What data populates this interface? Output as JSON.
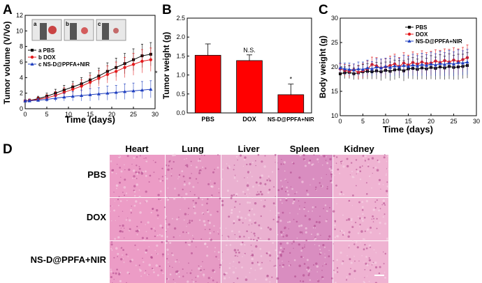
{
  "chart_data": [
    {
      "panel": "A",
      "type": "line",
      "xlabel": "Time (days)",
      "ylabel": "Tumor volume (V/Vo)",
      "xlim": [
        0,
        30
      ],
      "ylim": [
        0,
        12
      ],
      "xticks": [
        0,
        5,
        10,
        15,
        20,
        25,
        30
      ],
      "yticks": [
        0,
        2,
        4,
        6,
        8,
        10,
        12
      ],
      "x": [
        0,
        1,
        3,
        5,
        7,
        9,
        11,
        13,
        15,
        17,
        19,
        21,
        23,
        25,
        27,
        29
      ],
      "series": [
        {
          "name": "a PBS",
          "color": "#000000",
          "marker": "square",
          "values": [
            1.0,
            1.05,
            1.3,
            1.6,
            2.0,
            2.4,
            2.8,
            3.2,
            3.7,
            4.2,
            4.8,
            5.3,
            5.8,
            6.3,
            6.8,
            7.0
          ],
          "err": [
            0.1,
            0.2,
            0.3,
            0.4,
            0.5,
            0.6,
            0.7,
            0.8,
            0.9,
            1.0,
            1.1,
            1.2,
            1.3,
            1.4,
            1.5,
            1.5
          ]
        },
        {
          "name": "b DOX",
          "color": "#e31a1c",
          "marker": "circle",
          "values": [
            1.0,
            1.05,
            1.2,
            1.4,
            1.7,
            2.1,
            2.5,
            2.9,
            3.4,
            3.9,
            4.4,
            4.8,
            5.3,
            5.7,
            6.1,
            6.3
          ],
          "err": [
            0.1,
            0.2,
            0.3,
            0.4,
            0.5,
            0.6,
            0.7,
            0.8,
            0.9,
            1.0,
            1.1,
            1.2,
            1.3,
            1.4,
            1.5,
            1.5
          ]
        },
        {
          "name": "c NS-D@PPFA+NIR",
          "color": "#1f3fbf",
          "marker": "triangle",
          "values": [
            1.0,
            1.02,
            1.1,
            1.2,
            1.35,
            1.5,
            1.6,
            1.7,
            1.8,
            1.9,
            2.0,
            2.1,
            2.2,
            2.3,
            2.4,
            2.5
          ],
          "err": [
            0.1,
            0.15,
            0.2,
            0.3,
            0.4,
            0.5,
            0.6,
            0.7,
            0.8,
            0.8,
            0.9,
            0.9,
            1.0,
            1.0,
            1.1,
            1.1
          ]
        }
      ],
      "inset_labels": [
        "a",
        "b",
        "c"
      ],
      "annotation": "*"
    },
    {
      "panel": "B",
      "type": "bar",
      "ylabel": "Tumor weight (g)",
      "ylim": [
        0,
        2.5
      ],
      "yticks": [
        "0.0",
        "0.5",
        "1.0",
        "1.5",
        "2.0",
        "2.5"
      ],
      "categories": [
        "PBS",
        "DOX",
        "NS-D@PPFA+NIR"
      ],
      "values": [
        1.52,
        1.38,
        0.48
      ],
      "err": [
        0.3,
        0.15,
        0.28
      ],
      "color": "#ff0000",
      "annotations": [
        "",
        "N.S.",
        "*"
      ]
    },
    {
      "panel": "C",
      "type": "line",
      "xlabel": "Time (days)",
      "ylabel": "Body weight (g)",
      "xlim": [
        0,
        30
      ],
      "ylim": [
        10,
        30
      ],
      "xticks": [
        0,
        5,
        10,
        15,
        20,
        25,
        30
      ],
      "yticks": [
        10,
        15,
        20,
        25,
        30
      ],
      "x": [
        0,
        1,
        2,
        3,
        4,
        5,
        6,
        7,
        8,
        9,
        10,
        11,
        12,
        13,
        14,
        15,
        16,
        17,
        18,
        19,
        20,
        21,
        22,
        23,
        24,
        25,
        26,
        27,
        28
      ],
      "series": [
        {
          "name": "PBS",
          "color": "#000000",
          "marker": "square",
          "values": [
            18.6,
            18.8,
            18.9,
            18.6,
            18.8,
            19.0,
            19.1,
            19.0,
            19.2,
            19.0,
            19.3,
            19.1,
            19.4,
            19.5,
            19.2,
            19.6,
            19.7,
            19.5,
            19.8,
            19.6,
            19.9,
            19.7,
            20.0,
            19.8,
            20.1,
            19.9,
            20.0,
            20.1,
            20.3
          ],
          "err": [
            1.0,
            1.2,
            1.3,
            1.2,
            1.4,
            1.5,
            1.6,
            1.5,
            1.7,
            1.8,
            1.7,
            1.9,
            2.0,
            1.8,
            2.1,
            2.0,
            2.2,
            2.1,
            2.3,
            2.2,
            2.4,
            2.3,
            2.5,
            2.4,
            2.6,
            2.5,
            2.6,
            2.5,
            2.6
          ]
        },
        {
          "name": "DOX",
          "color": "#e31a1c",
          "marker": "circle",
          "values": [
            19.6,
            19.3,
            19.1,
            19.4,
            18.9,
            19.2,
            19.6,
            20.5,
            20.2,
            19.8,
            20.0,
            20.3,
            20.6,
            20.1,
            20.8,
            20.4,
            20.9,
            20.6,
            21.0,
            20.7,
            20.8,
            21.2,
            20.9,
            21.3,
            21.0,
            21.4,
            21.1,
            21.5,
            21.9
          ],
          "err": [
            1.0,
            1.2,
            1.3,
            1.2,
            1.4,
            1.5,
            1.6,
            1.5,
            1.7,
            1.8,
            1.7,
            1.9,
            2.0,
            1.8,
            2.1,
            2.0,
            2.2,
            2.1,
            2.3,
            2.2,
            2.4,
            2.3,
            2.5,
            2.4,
            2.6,
            2.5,
            2.6,
            2.5,
            2.6
          ]
        },
        {
          "name": "NS-D@PPFA+NIR",
          "color": "#1f3fbf",
          "marker": "triangle",
          "values": [
            19.8,
            19.6,
            19.5,
            19.4,
            19.6,
            19.5,
            19.8,
            19.6,
            20.0,
            19.8,
            20.1,
            19.9,
            20.2,
            20.0,
            20.3,
            20.1,
            20.4,
            20.2,
            20.5,
            20.3,
            20.6,
            20.4,
            20.7,
            20.5,
            20.8,
            20.6,
            20.9,
            20.8,
            21.0
          ],
          "err": [
            1.0,
            1.2,
            1.3,
            1.2,
            1.4,
            1.5,
            1.6,
            1.5,
            1.7,
            1.8,
            1.7,
            1.9,
            2.0,
            1.8,
            2.1,
            2.0,
            2.2,
            2.1,
            2.3,
            2.2,
            2.4,
            2.3,
            2.5,
            2.4,
            2.6,
            2.5,
            2.6,
            2.5,
            2.6
          ]
        }
      ]
    },
    {
      "panel": "D",
      "type": "table",
      "columns": [
        "Heart",
        "Lung",
        "Liver",
        "Spleen",
        "Kidney"
      ],
      "rows": [
        "PBS",
        "DOX",
        "NS-D@PPFA+NIR"
      ]
    }
  ],
  "panel_letters": [
    "A",
    "B",
    "C",
    "D"
  ],
  "colors": {
    "pbs": "#000000",
    "dox": "#e31a1c",
    "ns": "#1f3fbf",
    "bar": "#ff0000",
    "tissue_base": "#e99ac0",
    "tissue_dark": "#b04a8c"
  }
}
